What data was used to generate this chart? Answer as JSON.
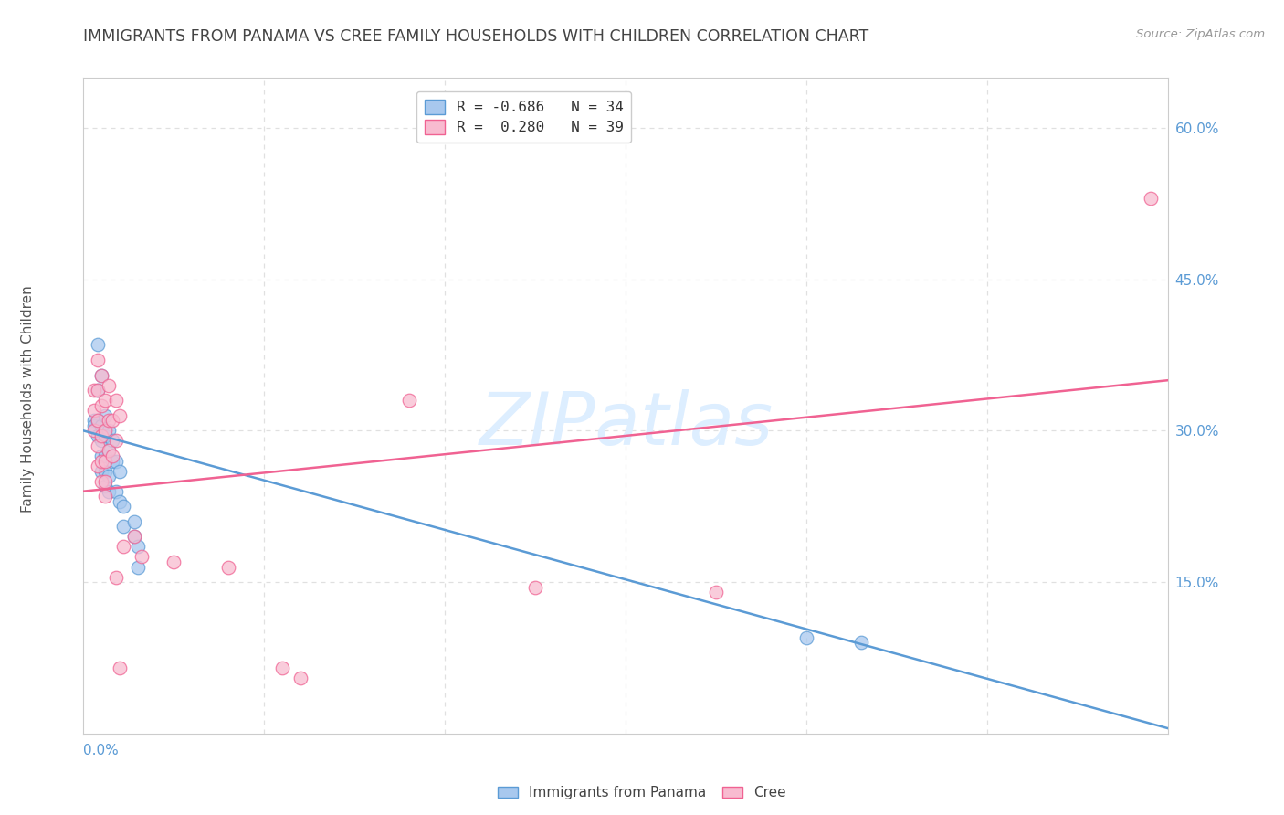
{
  "title": "IMMIGRANTS FROM PANAMA VS CREE FAMILY HOUSEHOLDS WITH CHILDREN CORRELATION CHART",
  "source": "Source: ZipAtlas.com",
  "ylabel": "Family Households with Children",
  "right_yticks": [
    "60.0%",
    "45.0%",
    "30.0%",
    "15.0%"
  ],
  "right_ytick_vals": [
    0.6,
    0.45,
    0.3,
    0.15
  ],
  "xlim": [
    0.0,
    0.3
  ],
  "ylim": [
    0.0,
    0.65
  ],
  "blue_color": "#A8C8EE",
  "pink_color": "#F8BBD0",
  "blue_line_color": "#5B9BD5",
  "pink_line_color": "#F06292",
  "blue_scatter": [
    [
      0.003,
      0.31
    ],
    [
      0.003,
      0.305
    ],
    [
      0.004,
      0.385
    ],
    [
      0.004,
      0.34
    ],
    [
      0.004,
      0.31
    ],
    [
      0.004,
      0.295
    ],
    [
      0.005,
      0.355
    ],
    [
      0.005,
      0.305
    ],
    [
      0.005,
      0.29
    ],
    [
      0.005,
      0.275
    ],
    [
      0.005,
      0.26
    ],
    [
      0.006,
      0.315
    ],
    [
      0.006,
      0.295
    ],
    [
      0.006,
      0.275
    ],
    [
      0.006,
      0.26
    ],
    [
      0.006,
      0.245
    ],
    [
      0.007,
      0.3
    ],
    [
      0.007,
      0.28
    ],
    [
      0.007,
      0.255
    ],
    [
      0.007,
      0.24
    ],
    [
      0.008,
      0.29
    ],
    [
      0.008,
      0.27
    ],
    [
      0.009,
      0.27
    ],
    [
      0.009,
      0.24
    ],
    [
      0.01,
      0.26
    ],
    [
      0.01,
      0.23
    ],
    [
      0.011,
      0.225
    ],
    [
      0.011,
      0.205
    ],
    [
      0.014,
      0.21
    ],
    [
      0.014,
      0.195
    ],
    [
      0.015,
      0.185
    ],
    [
      0.015,
      0.165
    ],
    [
      0.2,
      0.095
    ],
    [
      0.215,
      0.09
    ]
  ],
  "pink_scatter": [
    [
      0.003,
      0.34
    ],
    [
      0.003,
      0.32
    ],
    [
      0.003,
      0.3
    ],
    [
      0.004,
      0.37
    ],
    [
      0.004,
      0.34
    ],
    [
      0.004,
      0.31
    ],
    [
      0.004,
      0.285
    ],
    [
      0.004,
      0.265
    ],
    [
      0.005,
      0.355
    ],
    [
      0.005,
      0.325
    ],
    [
      0.005,
      0.295
    ],
    [
      0.005,
      0.27
    ],
    [
      0.005,
      0.25
    ],
    [
      0.006,
      0.33
    ],
    [
      0.006,
      0.3
    ],
    [
      0.006,
      0.27
    ],
    [
      0.006,
      0.25
    ],
    [
      0.006,
      0.235
    ],
    [
      0.007,
      0.345
    ],
    [
      0.007,
      0.31
    ],
    [
      0.007,
      0.28
    ],
    [
      0.008,
      0.31
    ],
    [
      0.008,
      0.275
    ],
    [
      0.009,
      0.33
    ],
    [
      0.009,
      0.29
    ],
    [
      0.01,
      0.315
    ],
    [
      0.011,
      0.185
    ],
    [
      0.014,
      0.195
    ],
    [
      0.016,
      0.175
    ],
    [
      0.025,
      0.17
    ],
    [
      0.04,
      0.165
    ],
    [
      0.055,
      0.065
    ],
    [
      0.06,
      0.055
    ],
    [
      0.09,
      0.33
    ],
    [
      0.125,
      0.145
    ],
    [
      0.175,
      0.14
    ],
    [
      0.295,
      0.53
    ],
    [
      0.009,
      0.155
    ],
    [
      0.01,
      0.065
    ]
  ],
  "blue_line": [
    [
      0.0,
      0.3
    ],
    [
      0.3,
      0.005
    ]
  ],
  "pink_line": [
    [
      0.0,
      0.24
    ],
    [
      0.3,
      0.35
    ]
  ],
  "watermark": "ZIPatlas",
  "watermark_color": "#DDEEFF",
  "background_color": "#FFFFFF",
  "grid_color": "#E0E0E0"
}
